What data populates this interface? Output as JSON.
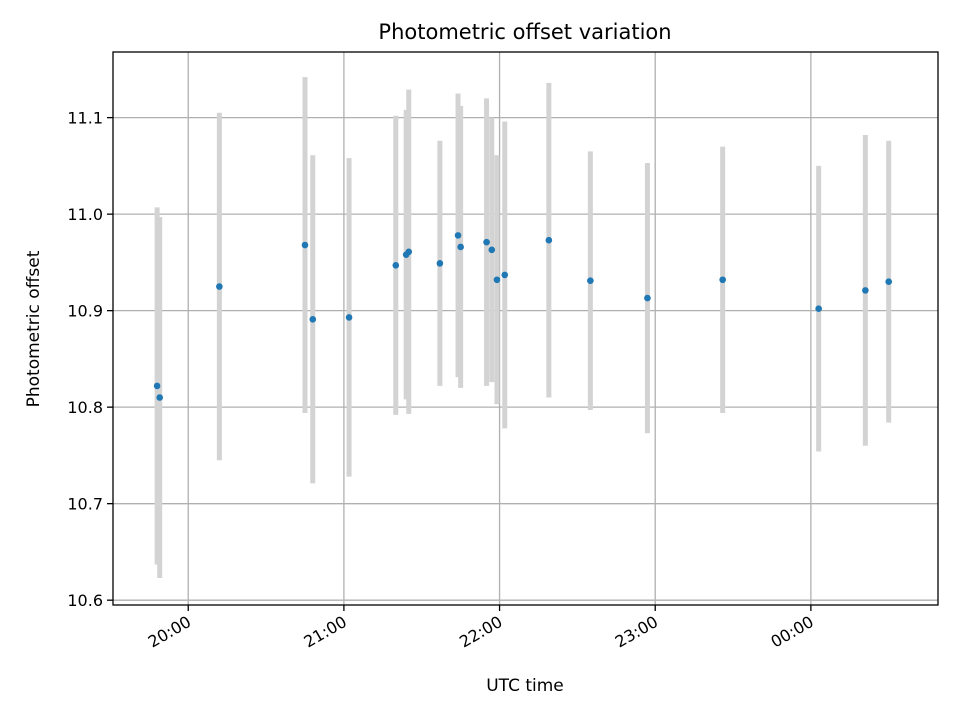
{
  "chart_data": {
    "type": "scatter",
    "title": "Photometric offset variation",
    "xlabel": "UTC time",
    "ylabel": "Photometric offset",
    "ylim": [
      10.595,
      11.168
    ],
    "xlim": [
      "19:31",
      "00:49"
    ],
    "x_ticks": [
      "20:00",
      "21:00",
      "22:00",
      "23:00",
      "00:00"
    ],
    "y_ticks": [
      "10.6",
      "10.7",
      "10.8",
      "10.9",
      "11.0",
      "11.1"
    ],
    "grid": true,
    "legend": "none",
    "colors": {
      "point": "#1f77b4",
      "errorbar": "#d3d3d3",
      "grid": "#b0b0b0"
    },
    "series": [
      {
        "points": [
          {
            "x": "19:48",
            "y": 10.822,
            "err": 0.185
          },
          {
            "x": "19:49",
            "y": 10.81,
            "err": 0.187
          },
          {
            "x": "20:12",
            "y": 10.925,
            "err": 0.18
          },
          {
            "x": "20:45",
            "y": 10.968,
            "err": 0.174
          },
          {
            "x": "20:48",
            "y": 10.891,
            "err": 0.17
          },
          {
            "x": "21:02",
            "y": 10.893,
            "err": 0.165
          },
          {
            "x": "21:20",
            "y": 10.947,
            "err": 0.155
          },
          {
            "x": "21:24",
            "y": 10.958,
            "err": 0.15
          },
          {
            "x": "21:25",
            "y": 10.961,
            "err": 0.168
          },
          {
            "x": "21:37",
            "y": 10.949,
            "err": 0.127
          },
          {
            "x": "21:44",
            "y": 10.978,
            "err": 0.147
          },
          {
            "x": "21:45",
            "y": 10.966,
            "err": 0.146
          },
          {
            "x": "21:55",
            "y": 10.971,
            "err": 0.149
          },
          {
            "x": "21:57",
            "y": 10.963,
            "err": 0.137
          },
          {
            "x": "21:59",
            "y": 10.932,
            "err": 0.129
          },
          {
            "x": "22:02",
            "y": 10.937,
            "err": 0.159
          },
          {
            "x": "22:19",
            "y": 10.973,
            "err": 0.163
          },
          {
            "x": "22:35",
            "y": 10.931,
            "err": 0.134
          },
          {
            "x": "22:57",
            "y": 10.913,
            "err": 0.14
          },
          {
            "x": "23:26",
            "y": 10.932,
            "err": 0.138
          },
          {
            "x": "00:03",
            "y": 10.902,
            "err": 0.148
          },
          {
            "x": "00:21",
            "y": 10.921,
            "err": 0.161
          },
          {
            "x": "00:30",
            "y": 10.93,
            "err": 0.146
          }
        ]
      }
    ]
  }
}
